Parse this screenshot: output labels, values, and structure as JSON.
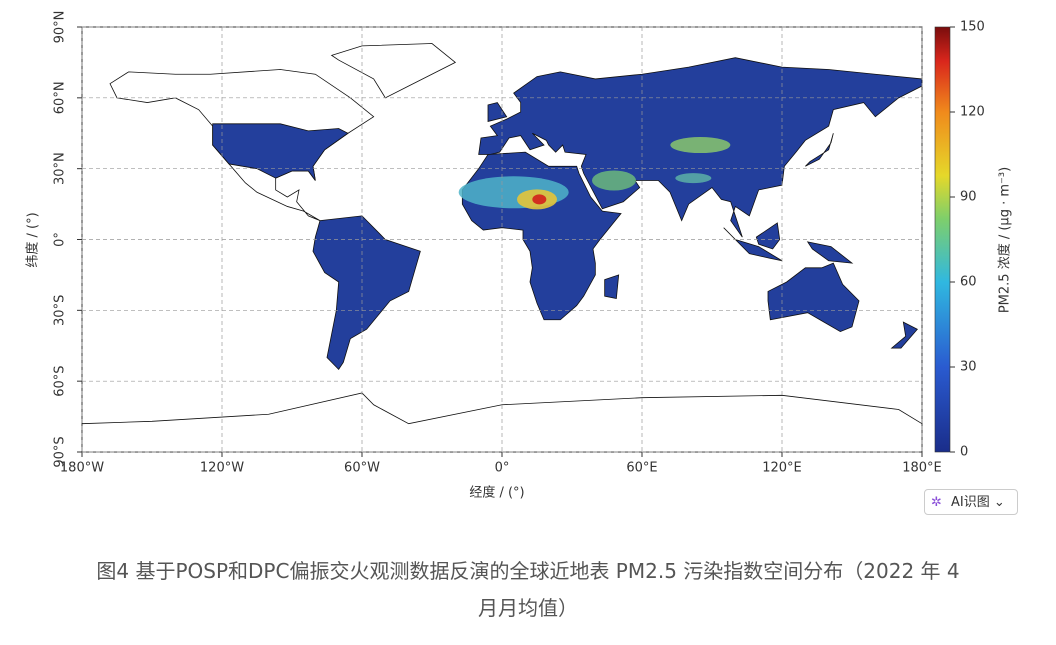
{
  "chart_data": {
    "type": "map",
    "xlabel": "经度 / (°)",
    "ylabel": "纬度 / (°)",
    "xlim": [
      -180,
      180
    ],
    "ylim": [
      -90,
      90
    ],
    "xticks": [
      {
        "value": -180,
        "label": "180°W"
      },
      {
        "value": -120,
        "label": "120°W"
      },
      {
        "value": -60,
        "label": "60°W"
      },
      {
        "value": 0,
        "label": "0°"
      },
      {
        "value": 60,
        "label": "60°E"
      },
      {
        "value": 120,
        "label": "120°E"
      },
      {
        "value": 180,
        "label": "180°E"
      }
    ],
    "yticks": [
      {
        "value": 90,
        "label": "90°N"
      },
      {
        "value": 60,
        "label": "60°N"
      },
      {
        "value": 30,
        "label": "30°N"
      },
      {
        "value": 0,
        "label": "0°"
      },
      {
        "value": -30,
        "label": "30°S"
      },
      {
        "value": -60,
        "label": "60°S"
      },
      {
        "value": -90,
        "label": "90°S"
      }
    ],
    "grid": true,
    "colorbar": {
      "label": "PM2.5 浓度 / (μg · m⁻³)",
      "lim": [
        0,
        150
      ],
      "ticks": [
        0,
        30,
        60,
        90,
        120,
        150
      ]
    }
  },
  "button": {
    "label": "AI识图"
  },
  "caption": {
    "line1": "图4  基于POSP和DPC偏振交火观测数据反演的全球近地表 PM2.5 污染指数空间分布（2022 年 4",
    "line2": "月月均值）"
  }
}
